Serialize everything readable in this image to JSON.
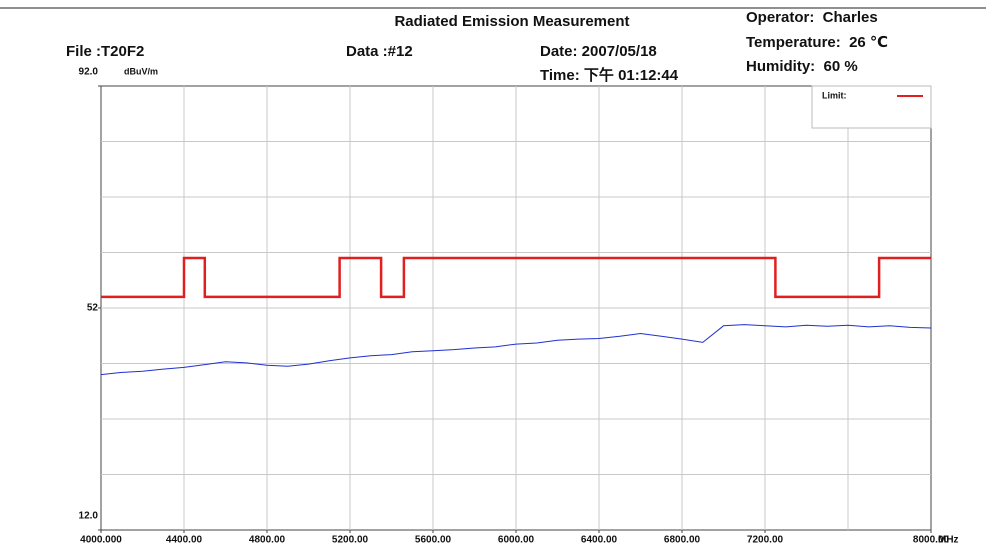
{
  "chart_data": {
    "type": "line",
    "title": "Radiated Emission Measurement",
    "file": "File :T20F2",
    "data_no": "Data :#12",
    "date": "Date: 2007/05/18",
    "time": "Time: 下午 01:12:44",
    "operator": "Operator:  Charles",
    "temperature": "Temperature:  26 ℃",
    "humidity": "Humidity:  60 %",
    "y_label": "dBuV/m",
    "x_label": "MHz",
    "xlim": [
      4000,
      8000
    ],
    "ylim": [
      12,
      92
    ],
    "xticks": [
      {
        "value": 4000,
        "label": "4000.000"
      },
      {
        "value": 4400,
        "label": "4400.00"
      },
      {
        "value": 4800,
        "label": "4800.00"
      },
      {
        "value": 5200,
        "label": "5200.00"
      },
      {
        "value": 5600,
        "label": "5600.00"
      },
      {
        "value": 6000,
        "label": "6000.00"
      },
      {
        "value": 6400,
        "label": "6400.00"
      },
      {
        "value": 6800,
        "label": "6800.00"
      },
      {
        "value": 7200,
        "label": "7200.00"
      },
      {
        "value": 8000,
        "label": "8000.00"
      }
    ],
    "xgrid": [
      4400,
      4800,
      5200,
      5600,
      6000,
      6400,
      6800,
      7200,
      7600
    ],
    "yticks": [
      {
        "value": 12,
        "label": "12.0"
      },
      52,
      {
        "value": 92,
        "label": "92.0"
      }
    ],
    "ygrid": [
      22,
      32,
      42,
      52,
      62,
      72,
      82
    ],
    "grid": true,
    "legend": "upper right",
    "series": [
      {
        "name": "Limit:",
        "color": "#e02020",
        "x": [
          4000,
          4400,
          4400,
          4500,
          4500,
          5150,
          5150,
          5350,
          5350,
          5460,
          5460,
          7250,
          7250,
          7750,
          7750,
          8000
        ],
        "values": [
          54,
          54,
          61,
          61,
          54,
          54,
          61,
          61,
          54,
          54,
          61,
          61,
          54,
          54,
          61,
          61
        ]
      },
      {
        "color": "#2030d0",
        "x": [
          4000,
          4100,
          4200,
          4300,
          4400,
          4500,
          4600,
          4700,
          4800,
          4900,
          5000,
          5100,
          5200,
          5300,
          5400,
          5500,
          5600,
          5700,
          5800,
          5900,
          6000,
          6100,
          6200,
          6300,
          6400,
          6500,
          6600,
          6700,
          6800,
          6900,
          7000,
          7100,
          7200,
          7300,
          7400,
          7500,
          7600,
          7700,
          7800,
          7900,
          8000
        ],
        "values": [
          40.0,
          40.4,
          40.6,
          41.0,
          41.3,
          41.8,
          42.3,
          42.1,
          41.7,
          41.5,
          41.9,
          42.5,
          43.0,
          43.4,
          43.6,
          44.1,
          44.3,
          44.5,
          44.8,
          45.0,
          45.5,
          45.7,
          46.2,
          46.4,
          46.5,
          46.9,
          47.4,
          46.9,
          46.4,
          45.8,
          48.8,
          49.0,
          48.8,
          48.6,
          48.9,
          48.7,
          48.9,
          48.6,
          48.8,
          48.5,
          48.4
        ]
      }
    ]
  }
}
